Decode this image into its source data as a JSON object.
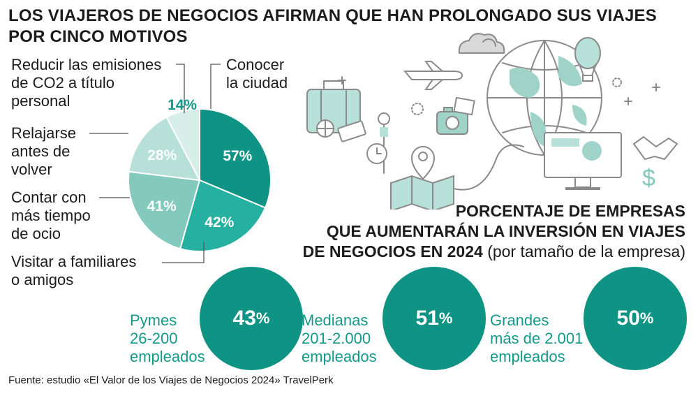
{
  "title": "LOS VIAJEROS DE NEGOCIOS AFIRMAN QUE HAN PROLONGADO SUS VIAJES POR CINCO MOTIVOS",
  "chart_data": [
    {
      "type": "pie",
      "title": "LOS VIAJEROS DE NEGOCIOS AFIRMAN QUE HAN PROLONGADO SUS VIAJES POR CINCO MOTIVOS",
      "categories": [
        "Conocer la ciudad",
        "Visitar a familiares o amigos",
        "Contar con más tiempo de ocio",
        "Relajarse antes de volver",
        "Reducir las emisiones de CO2 a título personal"
      ],
      "values": [
        57,
        42,
        41,
        28,
        14
      ],
      "value_labels": [
        "57%",
        "42%",
        "41%",
        "28%",
        "14%"
      ],
      "colors": [
        "#0f9384",
        "#26b0a1",
        "#84c9bd",
        "#b7e0d8",
        "#d8eee8"
      ],
      "label_lines": {
        "Conocer la ciudad": [
          "Conocer",
          "la ciudad"
        ],
        "Visitar a familiares o amigos": [
          "Visitar a familiares",
          "o amigos"
        ],
        "Contar con más tiempo de ocio": [
          "Contar con",
          "más tiempo",
          "de ocio"
        ],
        "Relajarse antes de volver": [
          "Relajarse",
          "antes de",
          "volver"
        ],
        "Reducir las emisiones de CO2 a título personal": [
          "Reducir las emisiones",
          "de CO2 a título",
          "personal"
        ]
      }
    },
    {
      "type": "bar",
      "title": "PORCENTAJE DE EMPRESAS QUE AUMENTARÁN LA INVERSIÓN EN VIAJES DE NEGOCIOS EN 2024 (por tamaño de la empresa)",
      "categories": [
        "Pymes 26-200 empleados",
        "Medianas 201-2.000 empleados",
        "Grandes más de 2.001 empleados"
      ],
      "values": [
        43,
        51,
        50
      ],
      "unit": "%"
    }
  ],
  "sizes_section": {
    "title_lines": [
      "PORCENTAJE DE EMPRESAS",
      "QUE AUMENTARÁN LA INVERSIÓN EN VIAJES",
      "DE NEGOCIOS EN 2024"
    ],
    "title_suffix": "(por tamaño de la empresa)",
    "items": [
      {
        "label_lines": [
          "Pymes",
          "26-200",
          "empleados"
        ],
        "value": "43",
        "unit": "%"
      },
      {
        "label_lines": [
          "Medianas",
          "201-2.000",
          "empleados"
        ],
        "value": "51",
        "unit": "%"
      },
      {
        "label_lines": [
          "Grandes",
          "más de 2.001",
          "empleados"
        ],
        "value": "50",
        "unit": "%"
      }
    ]
  },
  "source": "Fuente: estudio «El Valor de los Viajes de Negocios 2024» TravelPerk",
  "colors": {
    "teal_dark": "#0f9384",
    "teal_text": "#14998a",
    "icon_teal": "#9fd3c8",
    "icon_gray": "#8a8a8a"
  }
}
